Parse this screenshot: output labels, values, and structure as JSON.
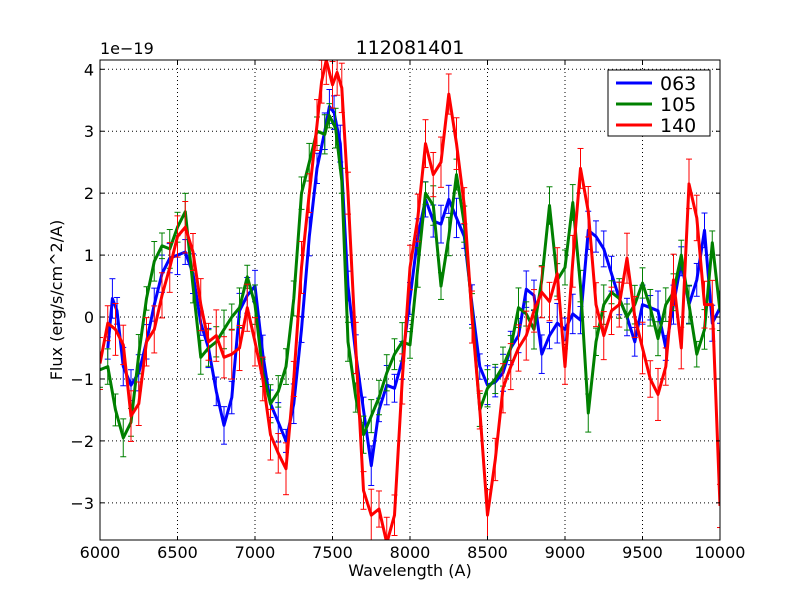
{
  "chart_data": {
    "type": "line",
    "title": "112081401",
    "xlabel": "Wavelength (A)",
    "ylabel": "Flux (erg/s/cm^2/A)",
    "offset_text": "1e−19",
    "xlim": [
      6000,
      10000
    ],
    "ylim": [
      -3.6,
      4.15
    ],
    "xticks": [
      6000,
      6500,
      7000,
      7500,
      8000,
      8500,
      9000,
      9500,
      10000
    ],
    "yticks": [
      -3,
      -2,
      -1,
      0,
      1,
      2,
      3,
      4
    ],
    "ytick_labels": [
      "−3",
      "−2",
      "−1",
      "0",
      "1",
      "2",
      "3",
      "4"
    ],
    "grid": true,
    "legend_position": "top-right",
    "series": [
      {
        "name": "063",
        "color": "#0000ff",
        "points": [
          [
            6050,
            -0.5
          ],
          [
            6080,
            0.3
          ],
          [
            6110,
            0.1
          ],
          [
            6150,
            -0.8
          ],
          [
            6200,
            -1.1
          ],
          [
            6250,
            -0.9
          ],
          [
            6300,
            -0.4
          ],
          [
            6350,
            0.2
          ],
          [
            6400,
            0.7
          ],
          [
            6450,
            0.95
          ],
          [
            6500,
            1.0
          ],
          [
            6550,
            1.05
          ],
          [
            6600,
            0.7
          ],
          [
            6650,
            -0.1
          ],
          [
            6700,
            -0.5
          ],
          [
            6750,
            -1.2
          ],
          [
            6800,
            -1.75
          ],
          [
            6850,
            -1.3
          ],
          [
            6900,
            0.1
          ],
          [
            6950,
            0.35
          ],
          [
            7000,
            0.5
          ],
          [
            7050,
            -0.6
          ],
          [
            7100,
            -1.4
          ],
          [
            7150,
            -1.7
          ],
          [
            7200,
            -2.0
          ],
          [
            7250,
            -1.4
          ],
          [
            7300,
            -0.2
          ],
          [
            7350,
            1.3
          ],
          [
            7400,
            2.4
          ],
          [
            7450,
            3.0
          ],
          [
            7480,
            3.4
          ],
          [
            7510,
            3.3
          ],
          [
            7550,
            2.8
          ],
          [
            7600,
            0.5
          ],
          [
            7650,
            -0.6
          ],
          [
            7700,
            -1.5
          ],
          [
            7750,
            -2.4
          ],
          [
            7800,
            -1.5
          ],
          [
            7850,
            -1.1
          ],
          [
            7900,
            -1.15
          ],
          [
            7950,
            -0.7
          ],
          [
            8000,
            0.3
          ],
          [
            8050,
            1.3
          ],
          [
            8100,
            1.9
          ],
          [
            8150,
            1.55
          ],
          [
            8200,
            1.5
          ],
          [
            8250,
            1.9
          ],
          [
            8300,
            1.6
          ],
          [
            8350,
            1.3
          ],
          [
            8400,
            0.2
          ],
          [
            8450,
            -0.8
          ],
          [
            8500,
            -1.1
          ],
          [
            8550,
            -1.05
          ],
          [
            8600,
            -0.9
          ],
          [
            8650,
            -0.5
          ],
          [
            8700,
            -0.3
          ],
          [
            8750,
            0.45
          ],
          [
            8800,
            0.35
          ],
          [
            8850,
            -0.6
          ],
          [
            8900,
            -0.3
          ],
          [
            8950,
            -0.1
          ],
          [
            9000,
            -0.2
          ],
          [
            9050,
            0.05
          ],
          [
            9100,
            -0.05
          ],
          [
            9150,
            1.4
          ],
          [
            9200,
            1.3
          ],
          [
            9250,
            1.1
          ],
          [
            9300,
            0.7
          ],
          [
            9350,
            0.3
          ],
          [
            9400,
            0.0
          ],
          [
            9450,
            -0.4
          ],
          [
            9500,
            0.2
          ],
          [
            9550,
            0.15
          ],
          [
            9600,
            0.1
          ],
          [
            9650,
            -0.5
          ],
          [
            9700,
            0.2
          ],
          [
            9750,
            0.9
          ],
          [
            9800,
            0.2
          ],
          [
            9850,
            0.6
          ],
          [
            9900,
            1.4
          ],
          [
            9950,
            -0.1
          ],
          [
            10000,
            0.15
          ]
        ]
      },
      {
        "name": "105",
        "color": "#008000",
        "points": [
          [
            6000,
            -0.85
          ],
          [
            6050,
            -0.8
          ],
          [
            6100,
            -1.5
          ],
          [
            6150,
            -1.95
          ],
          [
            6200,
            -1.7
          ],
          [
            6250,
            -0.6
          ],
          [
            6300,
            0.3
          ],
          [
            6350,
            0.9
          ],
          [
            6400,
            1.15
          ],
          [
            6450,
            1.1
          ],
          [
            6500,
            1.45
          ],
          [
            6550,
            1.7
          ],
          [
            6600,
            0.5
          ],
          [
            6650,
            -0.65
          ],
          [
            6700,
            -0.5
          ],
          [
            6750,
            -0.4
          ],
          [
            6800,
            -0.2
          ],
          [
            6850,
            0.0
          ],
          [
            6900,
            0.15
          ],
          [
            6950,
            0.65
          ],
          [
            7000,
            0.2
          ],
          [
            7050,
            -0.9
          ],
          [
            7100,
            -1.4
          ],
          [
            7150,
            -1.2
          ],
          [
            7200,
            -0.8
          ],
          [
            7250,
            0.3
          ],
          [
            7300,
            2.0
          ],
          [
            7350,
            2.5
          ],
          [
            7400,
            3.0
          ],
          [
            7450,
            2.95
          ],
          [
            7480,
            3.25
          ],
          [
            7520,
            3.05
          ],
          [
            7560,
            2.2
          ],
          [
            7600,
            -0.4
          ],
          [
            7650,
            -1.3
          ],
          [
            7700,
            -1.9
          ],
          [
            7750,
            -1.6
          ],
          [
            7800,
            -1.3
          ],
          [
            7850,
            -0.9
          ],
          [
            7900,
            -0.6
          ],
          [
            7950,
            -0.4
          ],
          [
            8000,
            -0.45
          ],
          [
            8050,
            0.8
          ],
          [
            8100,
            2.0
          ],
          [
            8150,
            1.8
          ],
          [
            8200,
            0.5
          ],
          [
            8250,
            1.3
          ],
          [
            8300,
            2.3
          ],
          [
            8350,
            1.5
          ],
          [
            8400,
            0.1
          ],
          [
            8450,
            -1.5
          ],
          [
            8500,
            -1.15
          ],
          [
            8550,
            -1.0
          ],
          [
            8600,
            -0.8
          ],
          [
            8650,
            -0.5
          ],
          [
            8700,
            0.15
          ],
          [
            8750,
            0.05
          ],
          [
            8800,
            -0.2
          ],
          [
            8850,
            0.6
          ],
          [
            8900,
            1.8
          ],
          [
            8950,
            0.6
          ],
          [
            9000,
            0.8
          ],
          [
            9050,
            1.85
          ],
          [
            9100,
            0.5
          ],
          [
            9150,
            -1.55
          ],
          [
            9200,
            -0.4
          ],
          [
            9250,
            0.2
          ],
          [
            9300,
            0.4
          ],
          [
            9350,
            0.3
          ],
          [
            9400,
            0.0
          ],
          [
            9450,
            0.2
          ],
          [
            9500,
            0.55
          ],
          [
            9550,
            0.15
          ],
          [
            9600,
            -0.35
          ],
          [
            9650,
            0.2
          ],
          [
            9700,
            0.4
          ],
          [
            9750,
            1.0
          ],
          [
            9800,
            0.2
          ],
          [
            9850,
            -0.6
          ],
          [
            9900,
            -0.2
          ],
          [
            9950,
            1.2
          ],
          [
            10000,
            0.1
          ]
        ]
      },
      {
        "name": "140",
        "color": "#ff0000",
        "points": [
          [
            6000,
            -0.75
          ],
          [
            6050,
            -0.1
          ],
          [
            6100,
            -0.2
          ],
          [
            6150,
            -0.45
          ],
          [
            6200,
            -1.6
          ],
          [
            6250,
            -1.4
          ],
          [
            6300,
            -0.4
          ],
          [
            6350,
            -0.2
          ],
          [
            6400,
            0.35
          ],
          [
            6450,
            0.8
          ],
          [
            6500,
            1.3
          ],
          [
            6550,
            1.45
          ],
          [
            6600,
            1.05
          ],
          [
            6650,
            0.2
          ],
          [
            6700,
            -0.4
          ],
          [
            6750,
            -0.3
          ],
          [
            6800,
            -0.65
          ],
          [
            6850,
            -0.6
          ],
          [
            6900,
            -0.5
          ],
          [
            6950,
            0.15
          ],
          [
            7000,
            -0.4
          ],
          [
            7050,
            -1.0
          ],
          [
            7100,
            -1.9
          ],
          [
            7150,
            -2.2
          ],
          [
            7200,
            -2.45
          ],
          [
            7250,
            -1.0
          ],
          [
            7300,
            0.8
          ],
          [
            7350,
            2.0
          ],
          [
            7400,
            3.1
          ],
          [
            7430,
            3.8
          ],
          [
            7460,
            4.15
          ],
          [
            7500,
            3.75
          ],
          [
            7530,
            3.95
          ],
          [
            7560,
            3.7
          ],
          [
            7600,
            2.0
          ],
          [
            7650,
            -0.5
          ],
          [
            7700,
            -2.8
          ],
          [
            7750,
            -3.2
          ],
          [
            7800,
            -3.1
          ],
          [
            7850,
            -3.65
          ],
          [
            7900,
            -3.2
          ],
          [
            7950,
            -1.0
          ],
          [
            8000,
            0.8
          ],
          [
            8050,
            1.6
          ],
          [
            8100,
            2.8
          ],
          [
            8150,
            2.3
          ],
          [
            8200,
            2.5
          ],
          [
            8250,
            3.6
          ],
          [
            8300,
            2.8
          ],
          [
            8350,
            1.8
          ],
          [
            8400,
            0.0
          ],
          [
            8450,
            -1.5
          ],
          [
            8500,
            -3.2
          ],
          [
            8550,
            -2.3
          ],
          [
            8600,
            -1.15
          ],
          [
            8650,
            -0.8
          ],
          [
            8700,
            -0.5
          ],
          [
            8750,
            -0.3
          ],
          [
            8800,
            0.1
          ],
          [
            8850,
            0.4
          ],
          [
            8900,
            0.25
          ],
          [
            8950,
            0.7
          ],
          [
            9000,
            -0.8
          ],
          [
            9050,
            0.9
          ],
          [
            9100,
            2.4
          ],
          [
            9150,
            1.7
          ],
          [
            9200,
            0.2
          ],
          [
            9250,
            -0.3
          ],
          [
            9300,
            0.1
          ],
          [
            9350,
            0.2
          ],
          [
            9400,
            0.95
          ],
          [
            9450,
            0.0
          ],
          [
            9500,
            -0.5
          ],
          [
            9550,
            -1.0
          ],
          [
            9600,
            -1.25
          ],
          [
            9650,
            -0.8
          ],
          [
            9700,
            0.6
          ],
          [
            9750,
            -0.5
          ],
          [
            9800,
            2.15
          ],
          [
            9850,
            1.6
          ],
          [
            9900,
            0.2
          ],
          [
            9950,
            0.2
          ],
          [
            10000,
            -3.05
          ]
        ]
      }
    ]
  }
}
